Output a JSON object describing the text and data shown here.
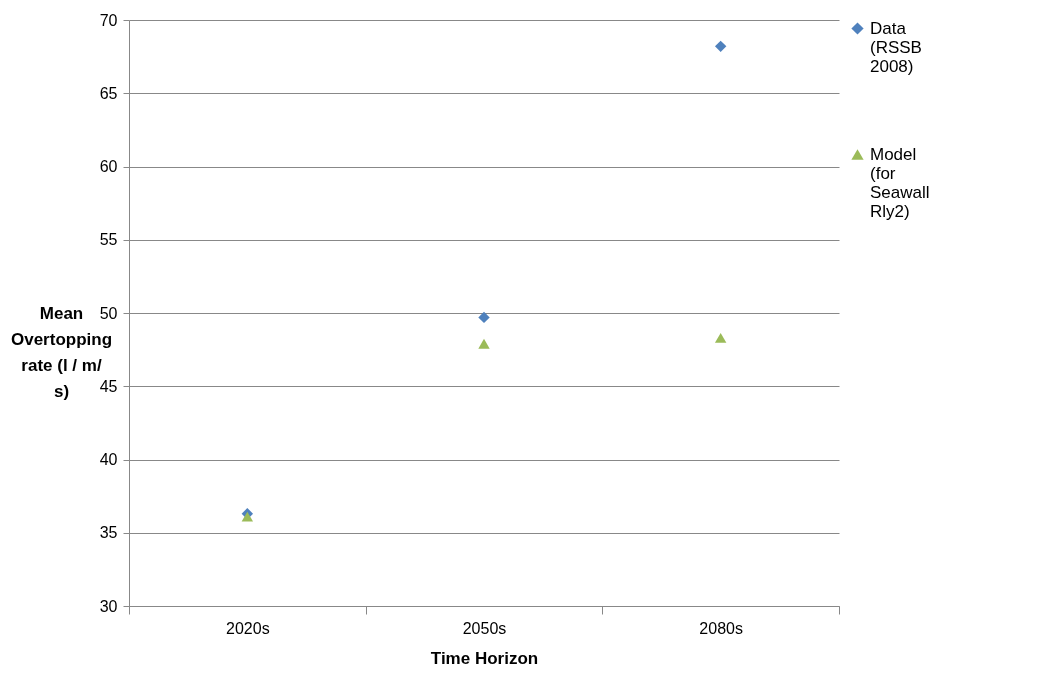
{
  "chart_data": {
    "type": "scatter",
    "xlabel": "Time Horizon",
    "ylabel": "Mean Overtopping rate (l / m/ s)",
    "categories": [
      "2020s",
      "2050s",
      "2080s"
    ],
    "series": [
      {
        "name": "Data (RSSB 2008)",
        "color": "#4f81bd",
        "marker": "diamond",
        "values": [
          36.3,
          49.7,
          68.2
        ]
      },
      {
        "name": "Model (for Seawall Rly2)",
        "color": "#9bbb59",
        "marker": "triangle",
        "values": [
          36.1,
          47.9,
          48.3
        ]
      }
    ],
    "ylim": [
      30,
      70
    ],
    "yticks": [
      30,
      35,
      40,
      45,
      50,
      55,
      60,
      65,
      70
    ],
    "grid": "y",
    "legend": "right"
  }
}
